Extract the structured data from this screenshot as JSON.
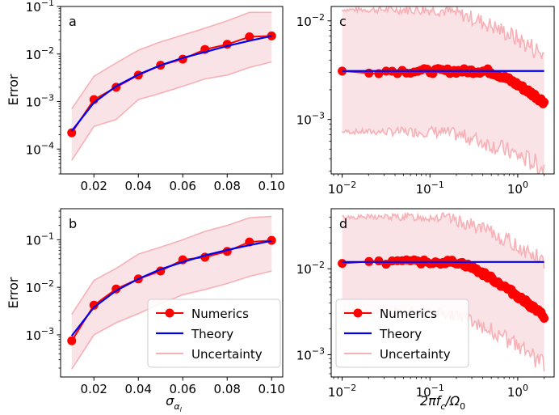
{
  "colors": {
    "numerics": "#ff0000",
    "theory": "#0000ee",
    "uncertainty_line": "#f7b1b6",
    "uncertainty_fill": "#f8d9df"
  },
  "chart_data": [
    {
      "panel": "a",
      "type": "line",
      "xscale": "linear",
      "yscale": "log",
      "xlim": [
        0.005,
        0.105
      ],
      "ylim": [
        3e-05,
        0.1
      ],
      "ylabel": "Error",
      "xlabel": "",
      "xticks": [
        "0.02",
        "0.04",
        "0.06",
        "0.08",
        "0.10"
      ],
      "yticks": [
        {
          "mant": "10",
          "exp": "−4",
          "value": 0.0001
        },
        {
          "mant": "10",
          "exp": "−3",
          "value": 0.001
        },
        {
          "mant": "10",
          "exp": "−2",
          "value": 0.01
        },
        {
          "mant": "10",
          "exp": "−1",
          "value": 0.1
        }
      ],
      "x": [
        0.01,
        0.02,
        0.03,
        0.04,
        0.05,
        0.06,
        0.07,
        0.08,
        0.09,
        0.1
      ],
      "series": [
        {
          "name": "Numerics",
          "values": [
            0.00022,
            0.0011,
            0.002,
            0.0036,
            0.0058,
            0.0078,
            0.0125,
            0.016,
            0.023,
            0.024
          ]
        },
        {
          "name": "Theory",
          "values": [
            0.00024,
            0.00095,
            0.0021,
            0.0037,
            0.0058,
            0.0083,
            0.011,
            0.0148,
            0.019,
            0.024
          ]
        },
        {
          "name": "Uncertainty upper",
          "values": [
            0.0007,
            0.0034,
            0.0065,
            0.012,
            0.018,
            0.025,
            0.035,
            0.05,
            0.075,
            0.075
          ]
        },
        {
          "name": "Uncertainty lower",
          "values": [
            5.8e-05,
            0.0003,
            0.00042,
            0.0011,
            0.0015,
            0.0021,
            0.003,
            0.0036,
            0.0052,
            0.0068
          ]
        }
      ]
    },
    {
      "panel": "b",
      "type": "line",
      "xscale": "linear",
      "yscale": "log",
      "xlim": [
        0.005,
        0.105
      ],
      "ylim": [
        0.00013,
        0.45
      ],
      "ylabel": "Error",
      "xlabel": "σ",
      "xlabel_sub": "α",
      "xlabel_subsub": "l",
      "xticks": [
        "0.02",
        "0.04",
        "0.06",
        "0.08",
        "0.10"
      ],
      "yticks": [
        {
          "mant": "10",
          "exp": "−3",
          "value": 0.001
        },
        {
          "mant": "10",
          "exp": "−2",
          "value": 0.01
        },
        {
          "mant": "10",
          "exp": "−1",
          "value": 0.1
        }
      ],
      "legend": [
        "Numerics",
        "Theory",
        "Uncertainty"
      ],
      "legend_position": "lower-right",
      "x": [
        0.01,
        0.02,
        0.03,
        0.04,
        0.05,
        0.06,
        0.07,
        0.08,
        0.09,
        0.1
      ],
      "series": [
        {
          "name": "Numerics",
          "values": [
            0.00075,
            0.0042,
            0.0092,
            0.015,
            0.022,
            0.038,
            0.043,
            0.057,
            0.09,
            0.097
          ]
        },
        {
          "name": "Theory",
          "values": [
            0.00095,
            0.0038,
            0.0085,
            0.015,
            0.024,
            0.034,
            0.047,
            0.061,
            0.077,
            0.095
          ]
        },
        {
          "name": "Uncertainty upper",
          "values": [
            0.0027,
            0.014,
            0.025,
            0.05,
            0.07,
            0.1,
            0.15,
            0.2,
            0.29,
            0.31
          ]
        },
        {
          "name": "Uncertainty lower",
          "values": [
            0.00019,
            0.001,
            0.0018,
            0.0028,
            0.0045,
            0.007,
            0.009,
            0.012,
            0.017,
            0.022
          ]
        }
      ]
    },
    {
      "panel": "c",
      "type": "line",
      "xscale": "log",
      "yscale": "log",
      "xlim": [
        0.0075,
        2.6
      ],
      "ylim": [
        0.00028,
        0.014
      ],
      "ylabel": "",
      "xlabel": "",
      "xticks": [
        {
          "mant": "10",
          "exp": "−2",
          "value": 0.01
        },
        {
          "mant": "10",
          "exp": "−1",
          "value": 0.1
        },
        {
          "mant": "10",
          "exp": "0",
          "value": 1
        }
      ],
      "yticks": [
        {
          "mant": "10",
          "exp": "−3",
          "value": 0.001
        },
        {
          "mant": "10",
          "exp": "−2",
          "value": 0.01
        }
      ],
      "x_range": [
        0.01,
        2.0
      ],
      "theory_value": 0.0031,
      "numerics_level": 0.0031,
      "numerics_end": 0.0015,
      "numerics_rolloff": 0.45,
      "uncertainty_upper_level": 0.013,
      "uncertainty_lower_level": 0.00075,
      "uncertainty_upper_end": 0.0045,
      "uncertainty_lower_end": 0.00032
    },
    {
      "panel": "d",
      "type": "line",
      "xscale": "log",
      "yscale": "log",
      "xlim": [
        0.0075,
        2.6
      ],
      "ylim": [
        0.00055,
        0.05
      ],
      "ylabel": "",
      "xlabel": "2πf",
      "xlabel_sub": "c",
      "xlabel_tail": "/Ω",
      "xlabel_tail_sub": "0",
      "xticks": [
        {
          "mant": "10",
          "exp": "−2",
          "value": 0.01
        },
        {
          "mant": "10",
          "exp": "−1",
          "value": 0.1
        },
        {
          "mant": "10",
          "exp": "0",
          "value": 1
        }
      ],
      "yticks": [
        {
          "mant": "10",
          "exp": "−3",
          "value": 0.001
        },
        {
          "mant": "10",
          "exp": "−2",
          "value": 0.01
        }
      ],
      "legend": [
        "Numerics",
        "Theory",
        "Uncertainty"
      ],
      "legend_position": "lower-left",
      "x_range": [
        0.01,
        2.0
      ],
      "theory_value": 0.012,
      "numerics_level": 0.012,
      "numerics_end": 0.0028,
      "numerics_rolloff": 0.2,
      "uncertainty_upper_level": 0.04,
      "uncertainty_lower_level": 0.0032,
      "uncertainty_upper_end": 0.012,
      "uncertainty_lower_end": 0.00075
    }
  ]
}
